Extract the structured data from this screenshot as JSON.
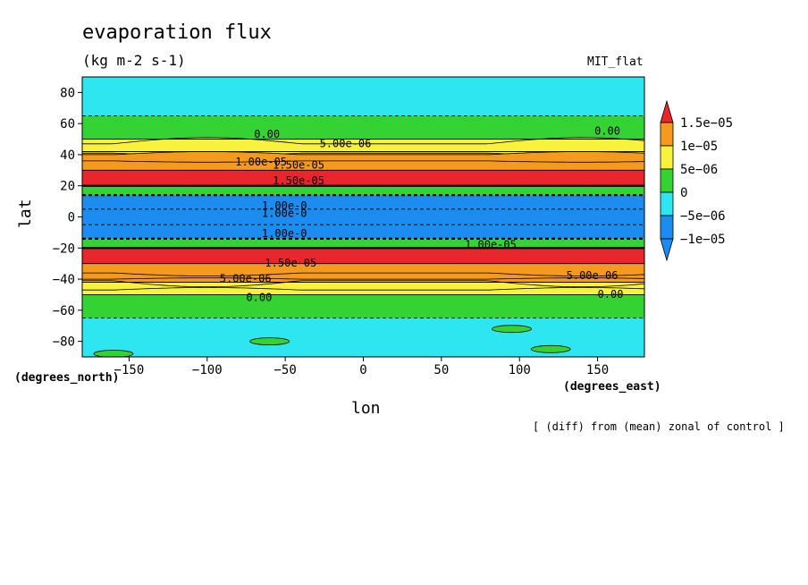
{
  "chart_data": {
    "type": "heatmap",
    "title": "evaporation flux",
    "subtitle": "(kg m-2 s-1)",
    "model_label": "MIT_flat",
    "xlabel": "lon",
    "ylabel": "lat",
    "x_units": "(degrees_east)",
    "y_units": "(degrees_north)",
    "footer": "[ (diff) from (mean) zonal of control ]",
    "xlim": [
      -180,
      180
    ],
    "ylim": [
      -90,
      90
    ],
    "x_ticks": [
      -150,
      -100,
      -50,
      0,
      50,
      100,
      150
    ],
    "y_ticks": [
      80,
      60,
      40,
      20,
      0,
      -20,
      -40,
      -60,
      -80
    ],
    "colorbar": {
      "levels": [
        "1.5e-05",
        "1e-05",
        "5e-06",
        "0",
        "-5e-06",
        "-1e-05"
      ],
      "colors": [
        "#e8262b",
        "#f59a1e",
        "#f8f23c",
        "#35d234",
        "#2ee6f0",
        "#1d8cf0"
      ]
    },
    "bands": [
      {
        "lat": [
          65,
          90
        ],
        "value": "0"
      },
      {
        "lat": [
          50,
          65
        ],
        "value": "0"
      },
      {
        "lat": [
          42,
          50
        ],
        "value": "5e-06"
      },
      {
        "lat": [
          30,
          42
        ],
        "value": "1e-05"
      },
      {
        "lat": [
          20,
          30
        ],
        "value": "1.5e-05"
      },
      {
        "lat": [
          14,
          20
        ],
        "value": "0"
      },
      {
        "lat": [
          5,
          14
        ],
        "value": "-5e-06"
      },
      {
        "lat": [
          -5,
          5
        ],
        "value": "-5e-06"
      },
      {
        "lat": [
          -14,
          -5
        ],
        "value": "-5e-06"
      },
      {
        "lat": [
          -20,
          -14
        ],
        "value": "0"
      },
      {
        "lat": [
          -30,
          -20
        ],
        "value": "1.5e-05"
      },
      {
        "lat": [
          -42,
          -30
        ],
        "value": "1e-05"
      },
      {
        "lat": [
          -50,
          -42
        ],
        "value": "5e-06"
      },
      {
        "lat": [
          -65,
          -50
        ],
        "value": "0"
      },
      {
        "lat": [
          -90,
          -65
        ],
        "value": "0"
      }
    ],
    "contour_labels": [
      {
        "text": "0.00",
        "lon": -70,
        "lat": 51
      },
      {
        "text": "5.00e-06",
        "lon": -28,
        "lat": 45
      },
      {
        "text": "0.00",
        "lon": 148,
        "lat": 53
      },
      {
        "text": "1.00e-05",
        "lon": -82,
        "lat": 33
      },
      {
        "text": "1.50e-05",
        "lon": -58,
        "lat": 31
      },
      {
        "text": "1.50e-05",
        "lon": -58,
        "lat": 21
      },
      {
        "text": "1.00e-0",
        "lon": -65,
        "lat": 5
      },
      {
        "text": "1.00e-0",
        "lon": -65,
        "lat": 0
      },
      {
        "text": "1.00e-0",
        "lon": -65,
        "lat": -13
      },
      {
        "text": "1.00e-05",
        "lon": 65,
        "lat": -20
      },
      {
        "text": "1.50e-05",
        "lon": -63,
        "lat": -32
      },
      {
        "text": "5.00e-06",
        "lon": -92,
        "lat": -42
      },
      {
        "text": "5.00e-06",
        "lon": 130,
        "lat": -40
      },
      {
        "text": "0.00",
        "lon": -75,
        "lat": -54
      },
      {
        "text": "0.00",
        "lon": 150,
        "lat": -52
      }
    ]
  }
}
